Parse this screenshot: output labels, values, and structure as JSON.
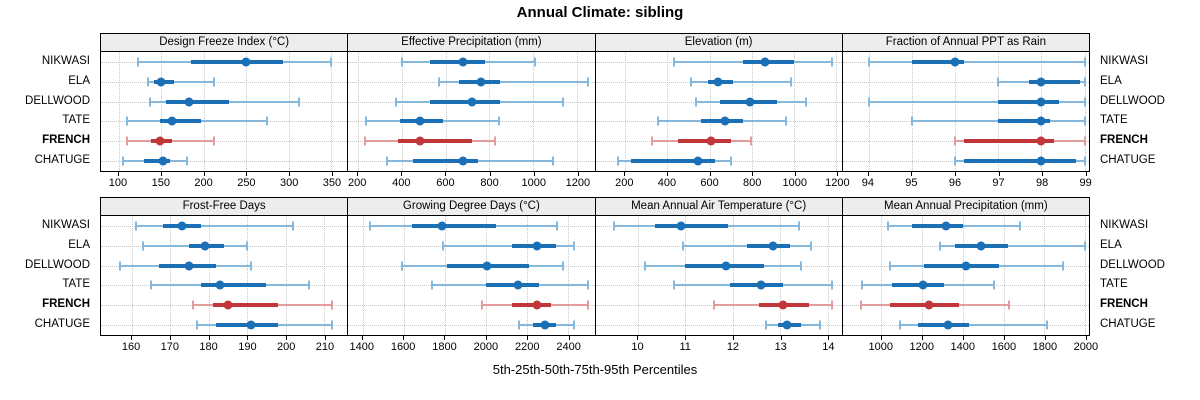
{
  "title": "Annual Climate: sibling",
  "caption": "5th-25th-50th-75th-95th Percentiles",
  "sites": [
    "NIKWASI",
    "ELA",
    "DELLWOOD",
    "TATE",
    "FRENCH",
    "CHATUGE"
  ],
  "highlight_site": "FRENCH",
  "colors": {
    "series": "#1b6fb5",
    "series_light": "#85b8dc",
    "highlight": "#c13639",
    "highlight_light": "#e39c9d",
    "grid": "#c9c9c9",
    "header_bg": "#ededed",
    "border": "#000000"
  },
  "chart_data": {
    "type": "dotplot-intervals",
    "percentile_levels": [
      5,
      25,
      50,
      75,
      95
    ],
    "legend_note": "dot = median, thick bar = 25th-75th, thin whisker with caps = 5th-95th",
    "rows": [
      [
        "Design Freeze Index (°C)",
        "Effective Precipitation (mm)",
        "Elevation (m)",
        "Fraction of Annual PPT as Rain"
      ],
      [
        "Frost-Free Days",
        "Growing Degree Days (°C)",
        "Mean Annual Air Temperature (°C)",
        "Mean Annual Precipitation (mm)"
      ]
    ],
    "panels": [
      {
        "title": "Design Freeze Index (°C)",
        "row": 1,
        "xlim": [
          79,
          369
        ],
        "ticks": [
          100,
          150,
          200,
          250,
          300,
          350
        ],
        "series": [
          {
            "site": "NIKWASI",
            "p": [
              122,
              185,
              250,
              293,
              350
            ]
          },
          {
            "site": "ELA",
            "p": [
              134,
              142,
              150,
              165,
              212
            ]
          },
          {
            "site": "DELLWOOD",
            "p": [
              137,
              155,
              183,
              230,
              312
            ]
          },
          {
            "site": "TATE",
            "p": [
              110,
              148,
              163,
              197,
              275
            ]
          },
          {
            "site": "FRENCH",
            "p": [
              110,
              138,
              148,
              163,
              212
            ]
          },
          {
            "site": "CHATUGE",
            "p": [
              105,
              130,
              152,
              160,
              180
            ]
          }
        ]
      },
      {
        "title": "Effective Precipitation (mm)",
        "row": 1,
        "xlim": [
          155,
          1280
        ],
        "ticks": [
          200,
          400,
          600,
          800,
          1000,
          1200
        ],
        "series": [
          {
            "site": "NIKWASI",
            "p": [
              400,
              530,
              680,
              780,
              1010
            ]
          },
          {
            "site": "ELA",
            "p": [
              570,
              660,
              760,
              850,
              1250
            ]
          },
          {
            "site": "DELLWOOD",
            "p": [
              375,
              530,
              720,
              850,
              1135
            ]
          },
          {
            "site": "TATE",
            "p": [
              235,
              390,
              485,
              590,
              845
            ]
          },
          {
            "site": "FRENCH",
            "p": [
              230,
              380,
              485,
              720,
              825
            ]
          },
          {
            "site": "CHATUGE",
            "p": [
              330,
              450,
              680,
              750,
              1090
            ]
          }
        ]
      },
      {
        "title": "Elevation (m)",
        "row": 1,
        "xlim": [
          60,
          1225
        ],
        "ticks": [
          200,
          400,
          600,
          800,
          1000,
          1200
        ],
        "series": [
          {
            "site": "NIKWASI",
            "p": [
              430,
              760,
              860,
              1000,
              1180
            ]
          },
          {
            "site": "ELA",
            "p": [
              510,
              590,
              640,
              710,
              985
            ]
          },
          {
            "site": "DELLWOOD",
            "p": [
              535,
              650,
              790,
              920,
              1055
            ]
          },
          {
            "site": "TATE",
            "p": [
              355,
              560,
              675,
              760,
              960
            ]
          },
          {
            "site": "FRENCH",
            "p": [
              325,
              450,
              605,
              700,
              795
            ]
          },
          {
            "site": "CHATUGE",
            "p": [
              165,
              230,
              545,
              625,
              700
            ]
          }
        ]
      },
      {
        "title": "Fraction of Annual PPT as Rain",
        "row": 1,
        "xlim": [
          93.4,
          99.1
        ],
        "ticks": [
          94,
          95,
          96,
          97,
          98,
          99
        ],
        "series": [
          {
            "site": "NIKWASI",
            "p": [
              94,
              95,
              96,
              96.2,
              99
            ]
          },
          {
            "site": "ELA",
            "p": [
              97,
              97.7,
              98,
              98.9,
              99
            ]
          },
          {
            "site": "DELLWOOD",
            "p": [
              94,
              97,
              98,
              98.4,
              99
            ]
          },
          {
            "site": "TATE",
            "p": [
              95,
              97,
              98,
              98.2,
              99
            ]
          },
          {
            "site": "FRENCH",
            "p": [
              96,
              96.2,
              98,
              98.3,
              99
            ]
          },
          {
            "site": "CHATUGE",
            "p": [
              96,
              96.2,
              98,
              98.8,
              99
            ]
          }
        ]
      },
      {
        "title": "Frost-Free Days",
        "row": 2,
        "xlim": [
          152,
          216
        ],
        "ticks": [
          160,
          170,
          180,
          190,
          200,
          210
        ],
        "series": [
          {
            "site": "NIKWASI",
            "p": [
              161,
              168,
              173,
              178,
              202
            ]
          },
          {
            "site": "ELA",
            "p": [
              163,
              175,
              179,
              184,
              190
            ]
          },
          {
            "site": "DELLWOOD",
            "p": [
              157,
              167,
              175,
              182,
              191
            ]
          },
          {
            "site": "TATE",
            "p": [
              165,
              178,
              183,
              195,
              206
            ]
          },
          {
            "site": "FRENCH",
            "p": [
              176,
              181,
              185,
              198,
              212
            ]
          },
          {
            "site": "CHATUGE",
            "p": [
              177,
              182,
              191,
              198,
              212
            ]
          }
        ]
      },
      {
        "title": "Growing Degree Days (°C)",
        "row": 2,
        "xlim": [
          1330,
          2530
        ],
        "ticks": [
          1400,
          1600,
          1800,
          2000,
          2200,
          2400
        ],
        "series": [
          {
            "site": "NIKWASI",
            "p": [
              1435,
              1640,
              1785,
              2050,
              2345
            ]
          },
          {
            "site": "ELA",
            "p": [
              1790,
              2130,
              2250,
              2340,
              2430
            ]
          },
          {
            "site": "DELLWOOD",
            "p": [
              1590,
              1810,
              2005,
              2210,
              2375
            ]
          },
          {
            "site": "TATE",
            "p": [
              1740,
              2000,
              2155,
              2260,
              2500
            ]
          },
          {
            "site": "FRENCH",
            "p": [
              1980,
              2130,
              2250,
              2320,
              2500
            ]
          },
          {
            "site": "CHATUGE",
            "p": [
              2160,
              2230,
              2290,
              2340,
              2430
            ]
          }
        ]
      },
      {
        "title": "Mean Annual Air Temperature (°C)",
        "row": 2,
        "xlim": [
          9.1,
          14.3
        ],
        "ticks": [
          10,
          11,
          12,
          13,
          14
        ],
        "series": [
          {
            "site": "NIKWASI",
            "p": [
              9.5,
              10.35,
              10.9,
              11.9,
              13.4
            ]
          },
          {
            "site": "ELA",
            "p": [
              10.95,
              12.3,
              12.85,
              13.2,
              13.65
            ]
          },
          {
            "site": "DELLWOOD",
            "p": [
              10.15,
              11.0,
              11.85,
              12.65,
              13.45
            ]
          },
          {
            "site": "TATE",
            "p": [
              10.75,
              11.95,
              12.6,
              13.05,
              14.1
            ]
          },
          {
            "site": "FRENCH",
            "p": [
              11.6,
              12.55,
              13.05,
              13.6,
              14.1
            ]
          },
          {
            "site": "CHATUGE",
            "p": [
              12.7,
              12.95,
              13.15,
              13.45,
              13.85
            ]
          }
        ]
      },
      {
        "title": "Mean Annual Precipitation (mm)",
        "row": 2,
        "xlim": [
          810,
          2020
        ],
        "ticks": [
          1000,
          1200,
          1400,
          1600,
          1800,
          2000
        ],
        "series": [
          {
            "site": "NIKWASI",
            "p": [
              1030,
              1150,
              1315,
              1400,
              1680
            ]
          },
          {
            "site": "ELA",
            "p": [
              1290,
              1360,
              1490,
              1620,
              2000
            ]
          },
          {
            "site": "DELLWOOD",
            "p": [
              1040,
              1210,
              1415,
              1580,
              1890
            ]
          },
          {
            "site": "TATE",
            "p": [
              905,
              1050,
              1205,
              1310,
              1555
            ]
          },
          {
            "site": "FRENCH",
            "p": [
              900,
              1040,
              1235,
              1380,
              1625
            ]
          },
          {
            "site": "CHATUGE",
            "p": [
              1090,
              1180,
              1325,
              1430,
              1815
            ]
          }
        ]
      }
    ]
  }
}
